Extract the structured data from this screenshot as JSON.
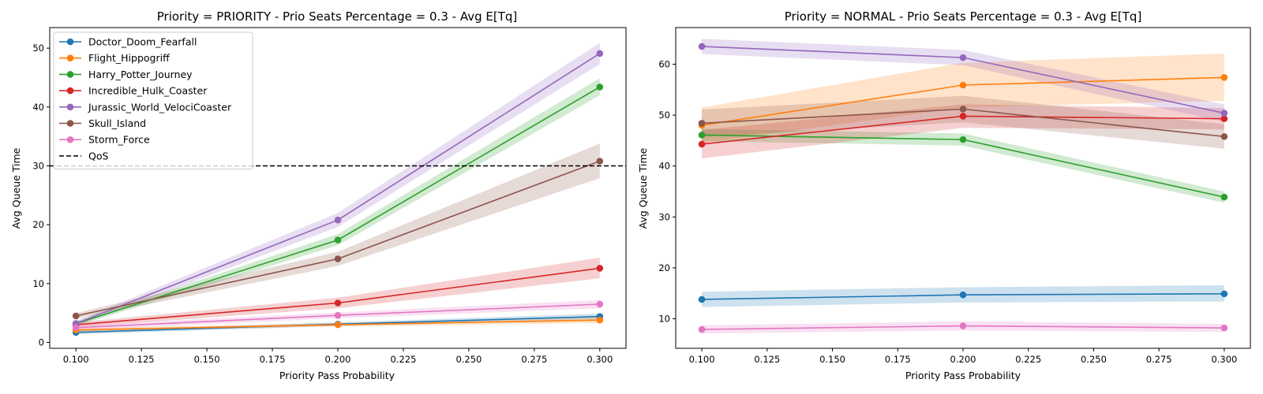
{
  "chart_data": [
    {
      "type": "line",
      "title": "Priority = PRIORITY - Prio Seats Percentage = 0.3 - Avg E[Tq]",
      "xlabel": "Priority Pass Probability",
      "ylabel": "Avg Queue Time",
      "xlim": [
        0.09,
        0.31
      ],
      "ylim": [
        -1,
        53.5
      ],
      "xticks": [
        "0.100",
        "0.125",
        "0.150",
        "0.175",
        "0.200",
        "0.225",
        "0.250",
        "0.275",
        "0.300"
      ],
      "yticks": [
        "0",
        "10",
        "20",
        "30",
        "40",
        "50"
      ],
      "legend": "top-left",
      "grid": false,
      "x": [
        0.1,
        0.2,
        0.3
      ],
      "qos": {
        "name": "QoS",
        "value": 30
      },
      "series": [
        {
          "name": "Doctor_Doom_Fearfall",
          "color": "#1f77b4",
          "values": [
            1.7,
            3.1,
            4.4
          ],
          "lower": [
            1.4,
            2.8,
            3.9
          ],
          "upper": [
            2.0,
            3.4,
            4.9
          ]
        },
        {
          "name": "Flight_Hippogriff",
          "color": "#ff7f0e",
          "values": [
            2.1,
            3.0,
            3.8
          ],
          "lower": [
            1.8,
            2.7,
            3.3
          ],
          "upper": [
            2.4,
            3.3,
            4.3
          ]
        },
        {
          "name": "Harry_Potter_Journey",
          "color": "#2ca02c",
          "values": [
            3.2,
            17.4,
            43.4
          ],
          "lower": [
            2.8,
            16.5,
            42.0
          ],
          "upper": [
            3.6,
            18.4,
            44.9
          ]
        },
        {
          "name": "Incredible_Hulk_Coaster",
          "color": "#d62728",
          "values": [
            3.0,
            6.7,
            12.6
          ],
          "lower": [
            2.6,
            5.8,
            10.9
          ],
          "upper": [
            3.4,
            7.6,
            14.4
          ]
        },
        {
          "name": "Jurassic_World_VelociCoaster",
          "color": "#9467bd",
          "values": [
            3.2,
            20.8,
            49.1
          ],
          "lower": [
            2.8,
            19.6,
            47.3
          ],
          "upper": [
            3.6,
            22.0,
            50.9
          ]
        },
        {
          "name": "Skull_Island",
          "color": "#8c564b",
          "values": [
            4.5,
            14.2,
            30.8
          ],
          "lower": [
            4.0,
            13.0,
            27.9
          ],
          "upper": [
            5.0,
            15.4,
            33.8
          ]
        },
        {
          "name": "Storm_Force",
          "color": "#e377c2",
          "values": [
            2.5,
            4.6,
            6.5
          ],
          "lower": [
            2.1,
            4.1,
            5.8
          ],
          "upper": [
            2.9,
            5.1,
            7.2
          ]
        }
      ]
    },
    {
      "type": "line",
      "title": "Priority = NORMAL - Prio Seats Percentage = 0.3 - Avg E[Tq]",
      "xlabel": "Priority Pass Probability",
      "ylabel": "Avg Queue Time",
      "xlim": [
        0.09,
        0.31
      ],
      "ylim": [
        4.2,
        67.2
      ],
      "xticks": [
        "0.100",
        "0.125",
        "0.150",
        "0.175",
        "0.200",
        "0.225",
        "0.250",
        "0.275",
        "0.300"
      ],
      "yticks": [
        "10",
        "20",
        "30",
        "40",
        "50",
        "60"
      ],
      "legend": "none",
      "grid": false,
      "x": [
        0.1,
        0.2,
        0.3
      ],
      "series": [
        {
          "name": "Doctor_Doom_Fearfall",
          "color": "#1f77b4",
          "values": [
            13.8,
            14.7,
            14.9
          ],
          "lower": [
            12.3,
            13.2,
            13.4
          ],
          "upper": [
            15.3,
            16.2,
            16.6
          ]
        },
        {
          "name": "Flight_Hippogriff",
          "color": "#ff7f0e",
          "values": [
            48.0,
            55.9,
            57.4
          ],
          "lower": [
            44.5,
            51.5,
            52.8
          ],
          "upper": [
            51.5,
            60.3,
            62.1
          ]
        },
        {
          "name": "Harry_Potter_Journey",
          "color": "#2ca02c",
          "values": [
            46.1,
            45.2,
            33.9
          ],
          "lower": [
            44.9,
            44.0,
            32.8
          ],
          "upper": [
            47.3,
            46.4,
            35.0
          ]
        },
        {
          "name": "Incredible_Hulk_Coaster",
          "color": "#d62728",
          "values": [
            44.3,
            49.8,
            49.3
          ],
          "lower": [
            41.5,
            47.5,
            47.2
          ],
          "upper": [
            47.1,
            52.1,
            51.4
          ]
        },
        {
          "name": "Jurassic_World_VelociCoaster",
          "color": "#9467bd",
          "values": [
            63.5,
            61.3,
            50.4
          ],
          "lower": [
            62.0,
            59.8,
            48.7
          ],
          "upper": [
            65.0,
            62.8,
            52.1
          ]
        },
        {
          "name": "Skull_Island",
          "color": "#8c564b",
          "values": [
            48.4,
            51.2,
            45.8
          ],
          "lower": [
            45.7,
            48.6,
            43.4
          ],
          "upper": [
            51.1,
            53.8,
            48.2
          ]
        },
        {
          "name": "Storm_Force",
          "color": "#e377c2",
          "values": [
            7.9,
            8.6,
            8.2
          ],
          "lower": [
            7.1,
            7.7,
            7.4
          ],
          "upper": [
            8.7,
            9.5,
            9.0
          ]
        }
      ]
    }
  ]
}
